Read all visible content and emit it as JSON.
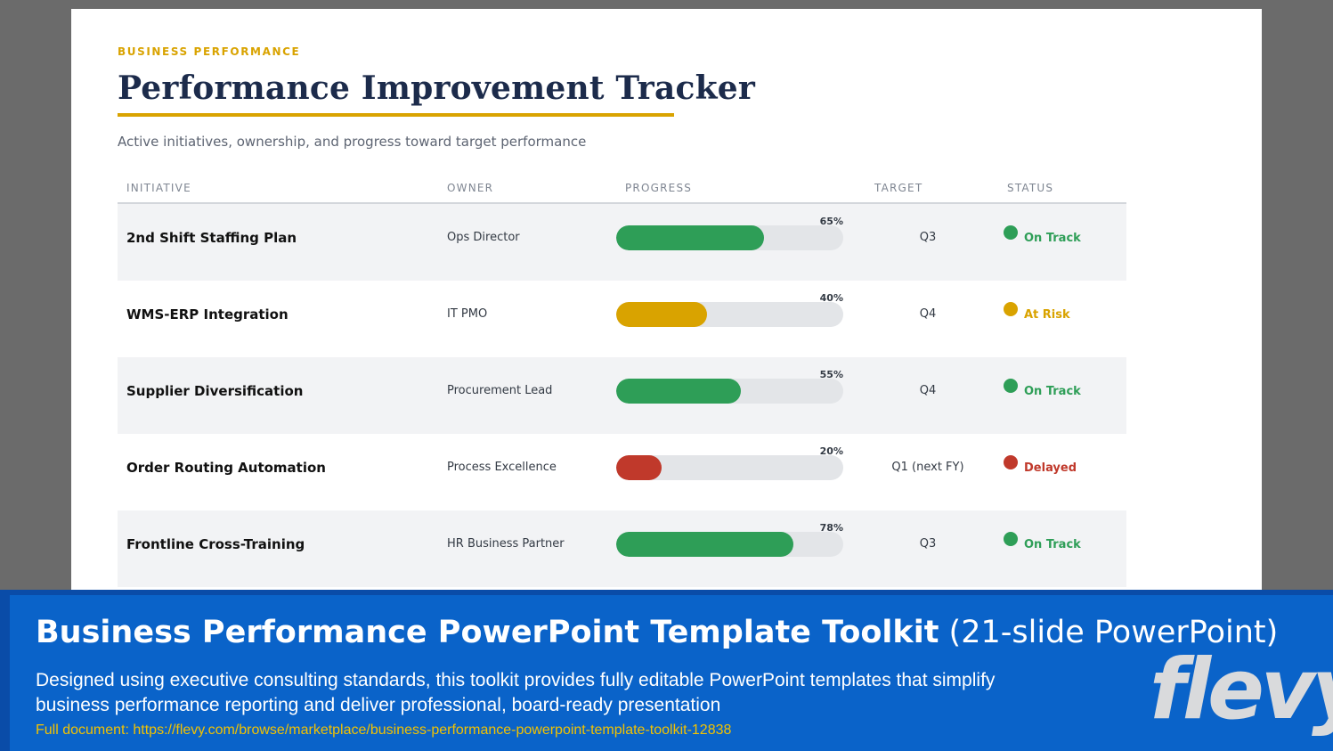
{
  "slide": {
    "eyebrow": "BUSINESS PERFORMANCE",
    "title": "Performance Improvement Tracker",
    "subtitle": "Active initiatives, ownership, and progress toward target performance",
    "accent_color": "#d9a300"
  },
  "table": {
    "headers": [
      "INITIATIVE",
      "OWNER",
      "PROGRESS",
      "TARGET",
      "STATUS"
    ],
    "rows": [
      {
        "initiative": "2nd Shift Staffing Plan",
        "owner": "Ops Director",
        "progress": 65,
        "progress_label": "65%",
        "target": "Q3",
        "status": "On Track",
        "status_color": "#2e9e57"
      },
      {
        "initiative": "WMS-ERP Integration",
        "owner": "IT PMO",
        "progress": 40,
        "progress_label": "40%",
        "target": "Q4",
        "status": "At Risk",
        "status_color": "#d9a300"
      },
      {
        "initiative": "Supplier Diversification",
        "owner": "Procurement Lead",
        "progress": 55,
        "progress_label": "55%",
        "target": "Q4",
        "status": "On Track",
        "status_color": "#2e9e57"
      },
      {
        "initiative": "Order Routing Automation",
        "owner": "Process Excellence",
        "progress": 20,
        "progress_label": "20%",
        "target": "Q1 (next FY)",
        "status": "Delayed",
        "status_color": "#c0392b"
      },
      {
        "initiative": "Frontline Cross-Training",
        "owner": "HR Business Partner",
        "progress": 78,
        "progress_label": "78%",
        "target": "Q3",
        "status": "On Track",
        "status_color": "#2e9e57"
      }
    ]
  },
  "banner": {
    "title_bold": "Business Performance PowerPoint Template Toolkit",
    "title_light": " (21-slide PowerPoint)",
    "description": "Designed using executive consulting standards, this toolkit provides fully editable PowerPoint templates that simplify business performance reporting and deliver professional, board-ready presentation",
    "link": "Full document: https://flevy.com/browse/marketplace/business-performance-powerpoint-template-toolkit-12838",
    "logo_text": "flevy"
  }
}
